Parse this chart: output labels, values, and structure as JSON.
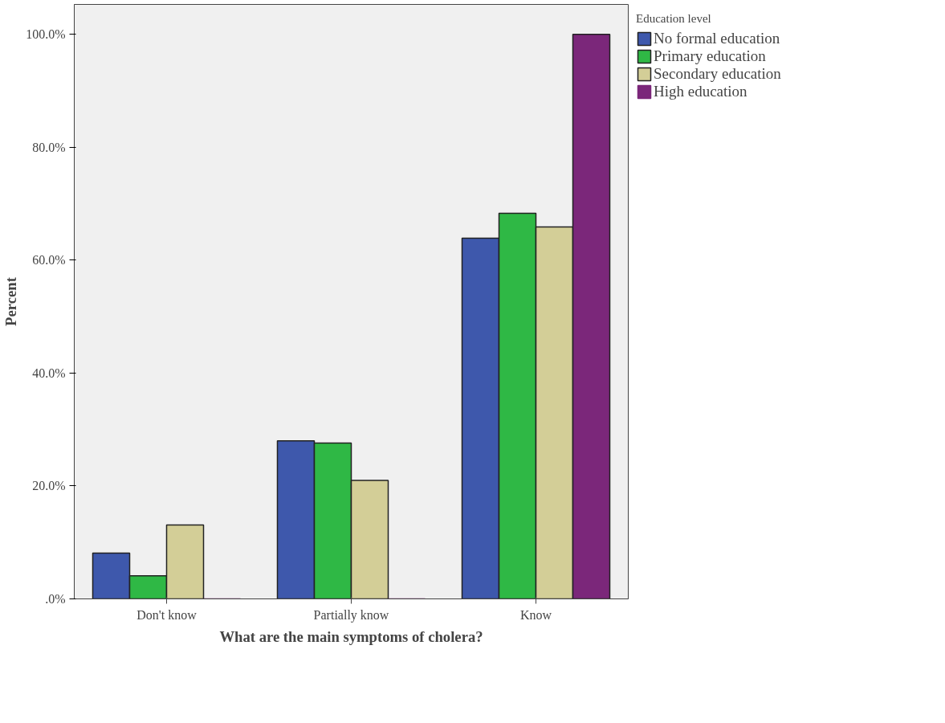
{
  "chart_data": {
    "type": "bar",
    "xlabel": "What are the main symptoms of cholera?",
    "ylabel": "Percent",
    "legend_title": "Education level",
    "categories": [
      "Don't know",
      "Partially know",
      "Know"
    ],
    "series": [
      {
        "name": "No formal education",
        "color": "#3e58ac",
        "values": [
          8.1,
          28.0,
          63.9
        ]
      },
      {
        "name": "Primary education",
        "color": "#2fb845",
        "values": [
          4.1,
          27.6,
          68.3
        ]
      },
      {
        "name": "Secondary education",
        "color": "#d3ce97",
        "values": [
          13.1,
          21.0,
          65.9
        ]
      },
      {
        "name": "High education",
        "color": "#7b277a",
        "values": [
          0,
          0,
          100
        ]
      }
    ],
    "ylim": [
      0,
      105.3
    ],
    "yticks": [
      {
        "value": 0,
        "label": ".0%"
      },
      {
        "value": 20,
        "label": "20.0%"
      },
      {
        "value": 40,
        "label": "40.0%"
      },
      {
        "value": 60,
        "label": "60.0%"
      },
      {
        "value": 80,
        "label": "80.0%"
      },
      {
        "value": 100,
        "label": "100.0%"
      }
    ],
    "grid": false,
    "legend": "top right"
  }
}
